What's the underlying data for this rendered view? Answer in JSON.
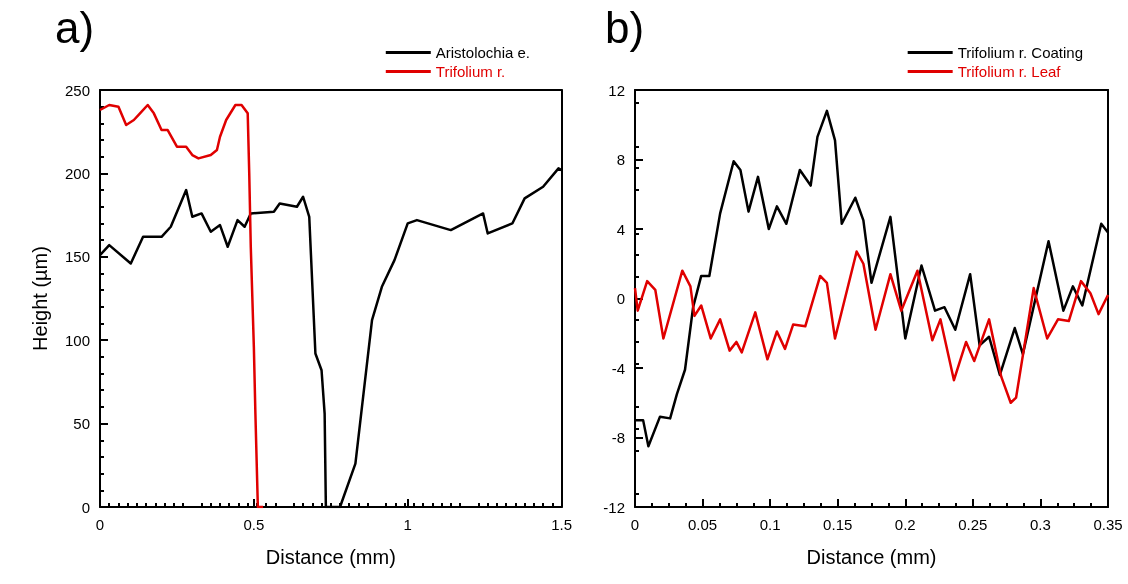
{
  "chart_data": [
    {
      "type": "line",
      "title": "a)",
      "xlabel": "Distance (mm)",
      "ylabel": "Height (µm)",
      "xlim": [
        0,
        1.5
      ],
      "xticks": [
        0,
        0.5,
        1,
        1.5
      ],
      "ylim": [
        0,
        250
      ],
      "yticks": [
        0,
        50,
        100,
        150,
        200,
        250
      ],
      "legend": "top right",
      "grid": false,
      "series": [
        {
          "name": "Aristolochia e.",
          "color": "#000000",
          "x": [
            0,
            0.03,
            0.1,
            0.14,
            0.2,
            0.23,
            0.28,
            0.3,
            0.33,
            0.36,
            0.39,
            0.415,
            0.447,
            0.47,
            0.49,
            0.565,
            0.584,
            0.64,
            0.66,
            0.68,
            0.7,
            0.72,
            0.73,
            0.734,
            0.78,
            0.83,
            0.884,
            0.916,
            0.957,
            1.0,
            1.03,
            1.14,
            1.245,
            1.26,
            1.34,
            1.38,
            1.44,
            1.49,
            1.5
          ],
          "values": [
            151,
            157,
            146,
            162,
            162,
            168,
            190,
            174,
            176,
            165,
            169,
            156,
            172,
            168,
            176,
            177,
            182,
            180,
            186,
            174,
            92,
            82,
            56,
            0,
            0,
            26,
            112,
            132,
            148,
            170,
            172,
            166,
            176,
            164,
            170,
            185,
            192,
            203,
            202
          ]
        },
        {
          "name": "Trifolium r.",
          "color": "#e00000",
          "x": [
            0,
            0.03,
            0.06,
            0.085,
            0.11,
            0.13,
            0.155,
            0.175,
            0.2,
            0.22,
            0.25,
            0.28,
            0.3,
            0.32,
            0.36,
            0.38,
            0.39,
            0.41,
            0.44,
            0.46,
            0.48,
            0.485,
            0.49,
            0.5,
            0.505,
            0.513,
            0.53
          ],
          "values": [
            238,
            241,
            240,
            229,
            232,
            236,
            241,
            236,
            226,
            226,
            216,
            216,
            211,
            209,
            211,
            214,
            222,
            232,
            241,
            241,
            236,
            200,
            156,
            96,
            56,
            0,
            0
          ]
        }
      ]
    },
    {
      "type": "line",
      "title": "b)",
      "xlabel": "Distance (mm)",
      "xlim": [
        0,
        0.35
      ],
      "xticks": [
        0,
        0.05,
        0.1,
        0.15,
        0.2,
        0.25,
        0.3,
        0.35
      ],
      "ylim": [
        -12,
        12
      ],
      "yticks": [
        -12,
        -8,
        -4,
        0,
        4,
        8,
        12
      ],
      "legend": "top right",
      "grid": false,
      "series": [
        {
          "name": "Trifolium r. Coating",
          "color": "#000000",
          "x": [
            0,
            0.006,
            0.0099,
            0.0185,
            0.026,
            0.031,
            0.037,
            0.043,
            0.049,
            0.055,
            0.063,
            0.073,
            0.078,
            0.084,
            0.091,
            0.099,
            0.105,
            0.112,
            0.122,
            0.13,
            0.135,
            0.142,
            0.148,
            0.153,
            0.163,
            0.169,
            0.175,
            0.189,
            0.2,
            0.212,
            0.222,
            0.229,
            0.237,
            0.248,
            0.255,
            0.262,
            0.27,
            0.281,
            0.287,
            0.306,
            0.317,
            0.324,
            0.331,
            0.345,
            0.35
          ],
          "values": [
            -7,
            -7,
            -8.5,
            -6.8,
            -6.9,
            -5.5,
            -4.1,
            -0.5,
            1.3,
            1.3,
            4.9,
            7.9,
            7.4,
            5,
            7,
            4,
            5.3,
            4.3,
            7.4,
            6.5,
            9.3,
            10.8,
            9.1,
            4.3,
            5.8,
            4.5,
            0.9,
            4.7,
            -2.3,
            1.9,
            -0.7,
            -0.5,
            -1.8,
            1.4,
            -2.7,
            -2.2,
            -4.4,
            -1.7,
            -3.2,
            3.3,
            -0.7,
            0.7,
            -0.4,
            4.3,
            3.8
          ]
        },
        {
          "name": "Trifolium r. Leaf",
          "color": "#e00000",
          "x": [
            0,
            0.002,
            0.009,
            0.015,
            0.021,
            0.035,
            0.041,
            0.044,
            0.049,
            0.056,
            0.063,
            0.07,
            0.075,
            0.079,
            0.089,
            0.098,
            0.105,
            0.111,
            0.117,
            0.126,
            0.137,
            0.142,
            0.148,
            0.164,
            0.169,
            0.178,
            0.189,
            0.197,
            0.209,
            0.22,
            0.226,
            0.236,
            0.245,
            0.251,
            0.262,
            0.271,
            0.278,
            0.282,
            0.295,
            0.305,
            0.313,
            0.321,
            0.33,
            0.337,
            0.343,
            0.35
          ],
          "values": [
            0.6,
            -0.7,
            1,
            0.5,
            -2.3,
            1.6,
            0.7,
            -1,
            -0.4,
            -2.3,
            -1.2,
            -3,
            -2.5,
            -3.1,
            -0.8,
            -3.5,
            -1.9,
            -2.9,
            -1.5,
            -1.6,
            1.3,
            0.9,
            -2.3,
            2.7,
            2,
            -1.8,
            1.4,
            -0.7,
            1.6,
            -2.4,
            -1.2,
            -4.7,
            -2.5,
            -3.6,
            -1.2,
            -4.5,
            -6,
            -5.7,
            0.6,
            -2.3,
            -1.2,
            -1.3,
            1,
            0.3,
            -0.9,
            0.2
          ]
        }
      ]
    }
  ]
}
